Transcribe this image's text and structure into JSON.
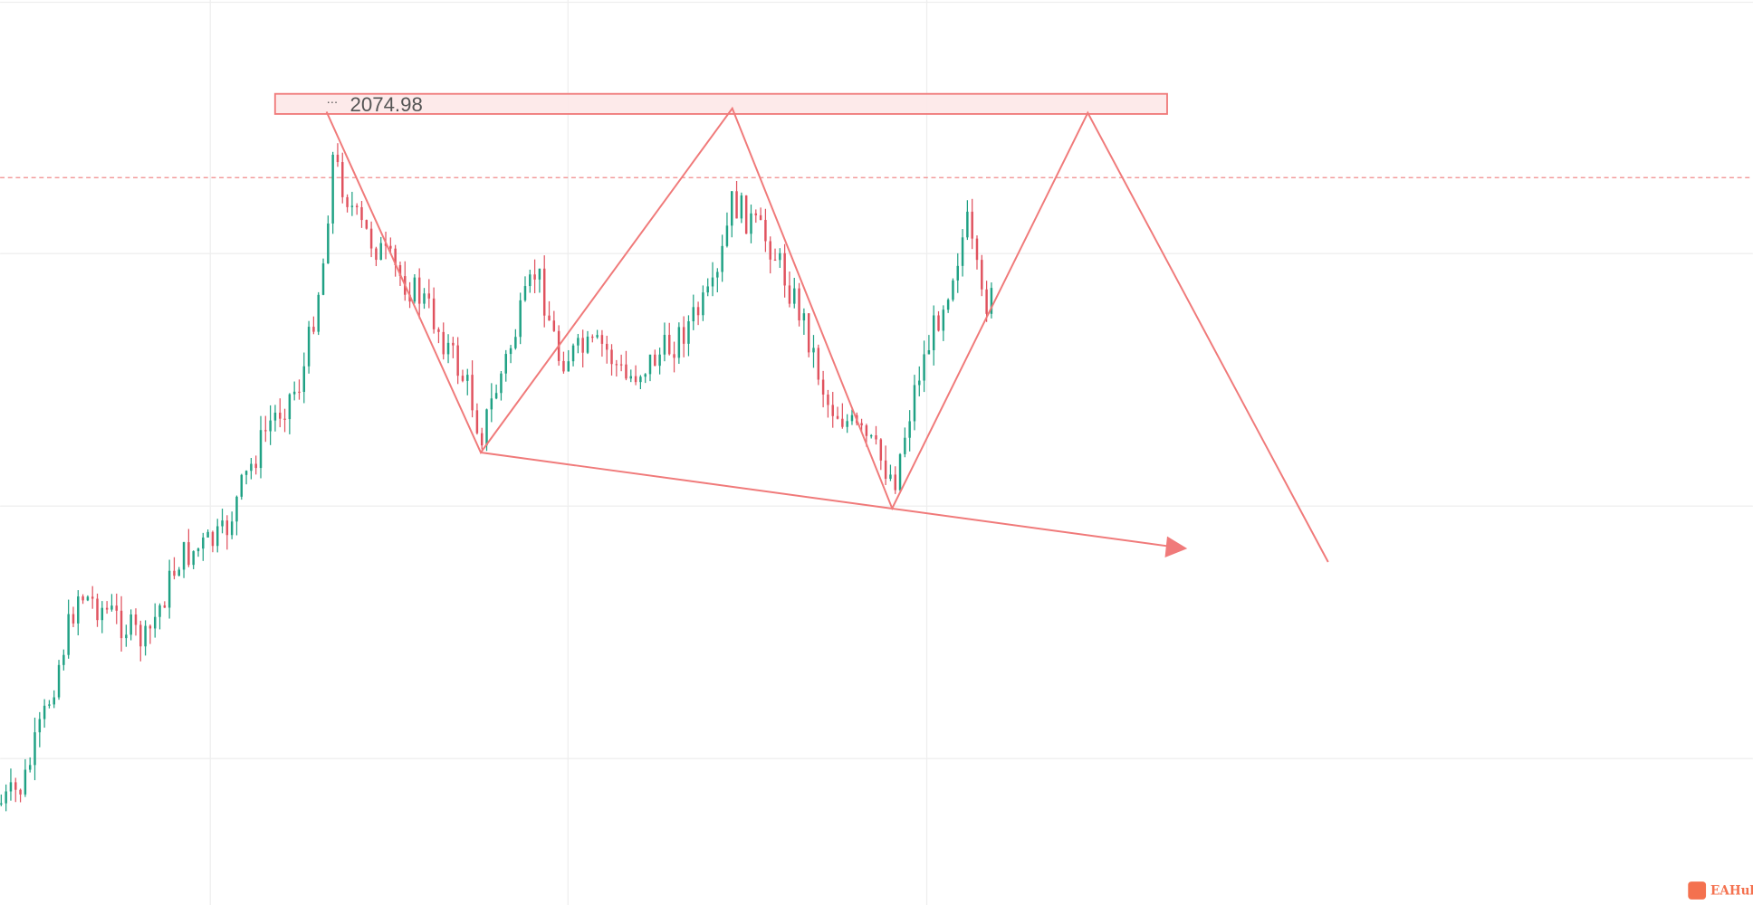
{
  "chart_data": {
    "type": "candlestick",
    "annotation": "2074.98",
    "watermark": "EAHub"
  }
}
